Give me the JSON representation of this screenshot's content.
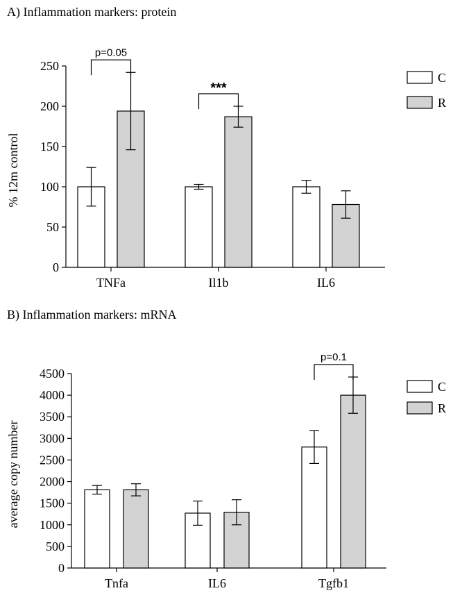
{
  "chart_data": [
    {
      "type": "bar",
      "title": "A) Inflammation markers: protein",
      "ylabel": "% 12m control",
      "xlabel": "",
      "ylim": [
        0,
        250
      ],
      "yticks": [
        0,
        50,
        100,
        150,
        200,
        250
      ],
      "categories": [
        "TNFa",
        "Il1b",
        "IL6"
      ],
      "series": [
        {
          "name": "C",
          "color": "#ffffff",
          "values": [
            100,
            100,
            100
          ],
          "errors": [
            24,
            3,
            8
          ]
        },
        {
          "name": "R",
          "color": "#d3d3d3",
          "values": [
            194,
            187,
            78
          ],
          "errors": [
            48,
            13,
            17
          ]
        }
      ],
      "annotations": [
        {
          "category": "TNFa",
          "text": "p=0.05",
          "style": "p"
        },
        {
          "category": "Il1b",
          "text": "***",
          "style": "stars"
        }
      ],
      "legend": "top-right",
      "grid": false
    },
    {
      "type": "bar",
      "title": "B) Inflammation markers: mRNA",
      "ylabel": "average copy number",
      "xlabel": "",
      "ylim": [
        0,
        4500
      ],
      "yticks": [
        0,
        500,
        1000,
        1500,
        2000,
        2500,
        3000,
        3500,
        4000,
        4500
      ],
      "categories": [
        "Tnfa",
        "IL6",
        "Tgfb1"
      ],
      "series": [
        {
          "name": "C",
          "color": "#ffffff",
          "values": [
            1810,
            1270,
            2800
          ],
          "errors": [
            100,
            280,
            380
          ]
        },
        {
          "name": "R",
          "color": "#d3d3d3",
          "values": [
            1810,
            1290,
            4000
          ],
          "errors": [
            140,
            290,
            420
          ]
        }
      ],
      "annotations": [
        {
          "category": "Tgfb1",
          "text": "p=0.1",
          "style": "p"
        }
      ],
      "legend": "top-right",
      "grid": false
    }
  ]
}
